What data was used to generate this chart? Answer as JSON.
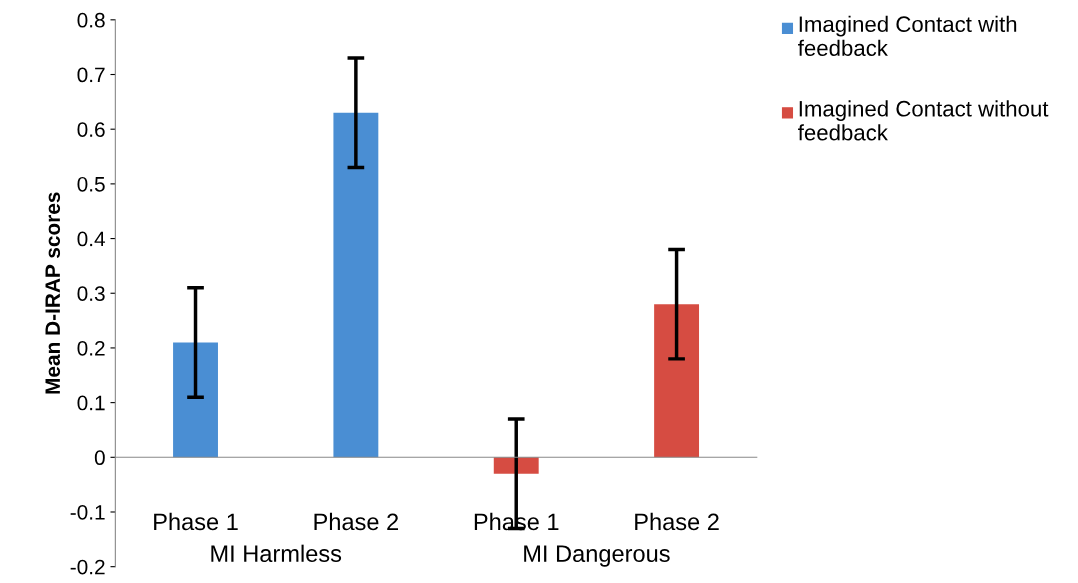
{
  "chart_data": {
    "type": "bar",
    "ylabel": "Mean D-IRAP scores",
    "categories": [
      "Phase 1",
      "Phase 2",
      "Phase 1",
      "Phase 2"
    ],
    "series": [
      {
        "name": "Imagined Contact with feedback",
        "color": "#4a8ed3",
        "values": [
          0.21,
          0.63,
          null,
          null
        ],
        "errors": [
          0.1,
          0.1,
          null,
          null
        ]
      },
      {
        "name": "Imagined Contact without feedback",
        "color": "#d64c42",
        "values": [
          null,
          null,
          -0.03,
          0.28
        ],
        "errors": [
          null,
          null,
          0.1,
          0.1
        ]
      }
    ],
    "ylim": [
      -0.2,
      0.8
    ],
    "yticks": [
      -0.2,
      -0.1,
      0,
      0.1,
      0.2,
      0.3,
      0.4,
      0.5,
      0.6,
      0.7,
      0.8
    ],
    "annotations": [
      "MI Harmless",
      "MI Dangerous"
    ],
    "legend": "top right",
    "grid": false
  }
}
